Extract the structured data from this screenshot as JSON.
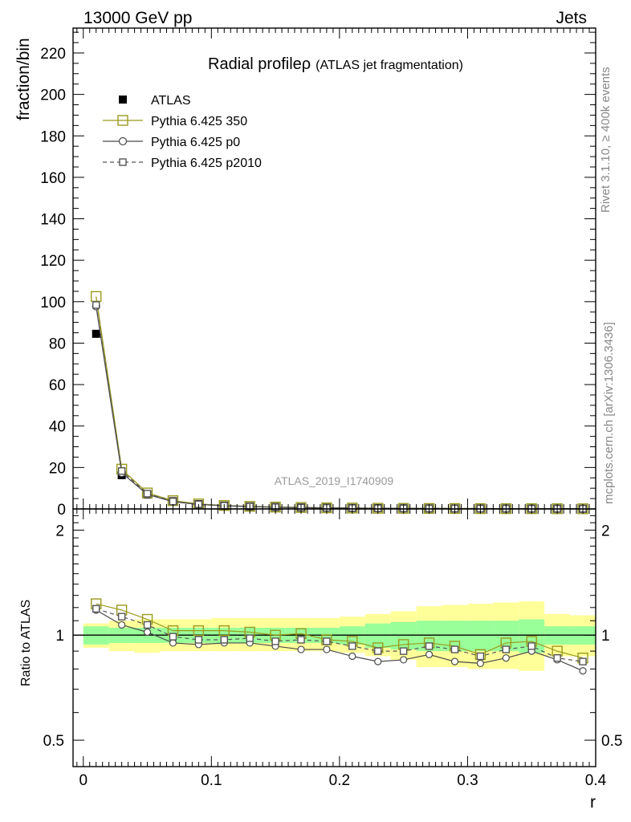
{
  "header": {
    "left": "13000 GeV pp",
    "right": "Jets"
  },
  "side": {
    "rivet": "Rivet 3.1.10, ≥ 400k events",
    "mcplots": "mcplots.cern.ch [arXiv:1306.3436]"
  },
  "chart_data": {
    "type": "line",
    "title_main": "Radial profile",
    "title_symbol": "ρ",
    "title_paren": "(ATLAS jet fragmentation)",
    "watermark": "ATLAS_2019_I1740909",
    "xlabel": "r",
    "ylabel": "fraction/bin",
    "ratio_ylabel": "Ratio to ATLAS",
    "xlim": [
      -0.008,
      0.4
    ],
    "ylim": [
      0,
      232
    ],
    "ratio_ylim_log": [
      0.42,
      2.3
    ],
    "x_ticks": [
      "0",
      "0.1",
      "0.2",
      "0.3",
      "0.4"
    ],
    "y_ticks": [
      "0",
      "20",
      "40",
      "60",
      "80",
      "100",
      "120",
      "140",
      "160",
      "180",
      "200",
      "220"
    ],
    "ratio_ticks": [
      "0.5",
      "1",
      "2"
    ],
    "x": [
      0.01,
      0.03,
      0.05,
      0.07,
      0.09,
      0.11,
      0.13,
      0.15,
      0.17,
      0.19,
      0.21,
      0.23,
      0.25,
      0.27,
      0.29,
      0.31,
      0.33,
      0.35,
      0.37,
      0.39
    ],
    "bin_edges": [
      0.0,
      0.02,
      0.04,
      0.06,
      0.08,
      0.1,
      0.12,
      0.14,
      0.16,
      0.18,
      0.2,
      0.22,
      0.24,
      0.26,
      0.28,
      0.3,
      0.32,
      0.34,
      0.36,
      0.38,
      0.4
    ],
    "data": {
      "name": "ATLAS",
      "values": [
        84.5,
        16.3,
        6.9,
        3.7,
        2.3,
        1.6,
        1.2,
        0.9,
        0.7,
        0.55,
        0.45,
        0.36,
        0.3,
        0.25,
        0.21,
        0.18,
        0.15,
        0.13,
        0.11,
        0.09
      ],
      "band_inner_low": [
        0.94,
        0.95,
        0.95,
        0.95,
        0.95,
        0.95,
        0.95,
        0.95,
        0.95,
        0.95,
        0.94,
        0.92,
        0.91,
        0.9,
        0.9,
        0.9,
        0.9,
        0.89,
        0.94,
        0.94
      ],
      "band_inner_high": [
        1.06,
        1.05,
        1.05,
        1.05,
        1.05,
        1.05,
        1.05,
        1.05,
        1.05,
        1.05,
        1.06,
        1.08,
        1.09,
        1.1,
        1.1,
        1.1,
        1.1,
        1.11,
        1.06,
        1.06
      ],
      "band_outer_low": [
        0.92,
        0.9,
        0.89,
        0.9,
        0.9,
        0.9,
        0.9,
        0.9,
        0.9,
        0.9,
        0.89,
        0.87,
        0.85,
        0.81,
        0.81,
        0.8,
        0.8,
        0.79,
        0.87,
        0.87
      ],
      "band_outer_high": [
        1.08,
        1.1,
        1.11,
        1.11,
        1.11,
        1.12,
        1.12,
        1.12,
        1.12,
        1.12,
        1.13,
        1.15,
        1.17,
        1.21,
        1.22,
        1.23,
        1.24,
        1.25,
        1.15,
        1.14
      ]
    },
    "series": [
      {
        "name": "Pythia 6.425 350",
        "color": "#9a9a1e",
        "marker": "open-square-large",
        "dashed": false,
        "values": [
          102.5,
          19.2,
          7.7,
          4.0,
          2.4,
          1.66,
          1.24,
          0.9,
          0.71,
          0.53,
          0.43,
          0.33,
          0.28,
          0.24,
          0.2,
          0.16,
          0.14,
          0.12,
          0.1,
          0.08
        ],
        "ratio": [
          1.23,
          1.18,
          1.11,
          1.03,
          1.03,
          1.03,
          1.02,
          1.0,
          1.01,
          0.97,
          0.96,
          0.92,
          0.94,
          0.95,
          0.93,
          0.88,
          0.95,
          0.96,
          0.9,
          0.86
        ]
      },
      {
        "name": "Pythia 6.425 p0",
        "color": "#4a4a4a",
        "marker": "open-circle",
        "dashed": false,
        "values": [
          97.8,
          17.4,
          7.0,
          3.5,
          2.16,
          1.52,
          1.14,
          0.83,
          0.64,
          0.5,
          0.39,
          0.3,
          0.26,
          0.22,
          0.18,
          0.15,
          0.13,
          0.12,
          0.09,
          0.07
        ],
        "ratio": [
          1.18,
          1.07,
          1.02,
          0.95,
          0.94,
          0.95,
          0.95,
          0.93,
          0.91,
          0.91,
          0.87,
          0.84,
          0.85,
          0.88,
          0.84,
          0.83,
          0.86,
          0.9,
          0.85,
          0.79
        ]
      },
      {
        "name": "Pythia 6.425 p2010",
        "color": "#555555",
        "marker": "open-square-small",
        "dashed": true,
        "values": [
          98.4,
          18.3,
          7.4,
          3.6,
          2.24,
          1.56,
          1.17,
          0.86,
          0.68,
          0.53,
          0.42,
          0.32,
          0.27,
          0.23,
          0.19,
          0.16,
          0.14,
          0.12,
          0.1,
          0.08
        ],
        "ratio": [
          1.19,
          1.13,
          1.07,
          0.99,
          0.97,
          0.97,
          0.98,
          0.96,
          0.97,
          0.96,
          0.93,
          0.9,
          0.9,
          0.93,
          0.91,
          0.87,
          0.91,
          0.93,
          0.86,
          0.84
        ]
      }
    ]
  }
}
